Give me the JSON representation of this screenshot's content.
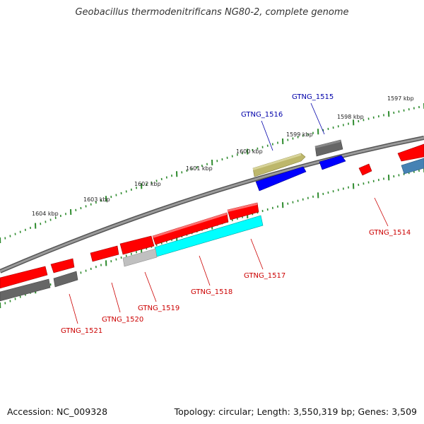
{
  "header": {
    "title": "Geobacillus thermodenitrificans NG80-2, complete genome"
  },
  "footer": {
    "accession": "Accession: NC_009328",
    "summary": "Topology: circular; Length: 3,550,319 bp; Genes: 3,509"
  },
  "colors": {
    "backbone": "#808080",
    "ticks": "#2e8b2e",
    "gene_red": "#ff0000",
    "gene_blue": "#0000ff",
    "gene_cyan": "#00ffff",
    "gene_olive": "#bdb76b",
    "gene_dark_gray": "#666666",
    "gene_light_gray": "#c0c0c0",
    "gene_steel_blue": "#4682b4",
    "label_red": "#cc0000",
    "label_blue": "#0000aa"
  },
  "ruler_labels": [
    "1597 kbp",
    "1598 kbp",
    "1599 kbp",
    "1600 kbp",
    "1601 kbp",
    "1602 kbp",
    "1603 kbp",
    "1604 kbp"
  ],
  "gene_labels": [
    {
      "id": "GTNG_1515",
      "color": "label_blue"
    },
    {
      "id": "GTNG_1516",
      "color": "label_blue"
    },
    {
      "id": "GTNG_1514",
      "color": "label_red"
    },
    {
      "id": "GTNG_1517",
      "color": "label_red"
    },
    {
      "id": "GTNG_1518",
      "color": "label_red"
    },
    {
      "id": "GTNG_1519",
      "color": "label_red"
    },
    {
      "id": "GTNG_1520",
      "color": "label_red"
    },
    {
      "id": "GTNG_1521",
      "color": "label_red"
    }
  ]
}
